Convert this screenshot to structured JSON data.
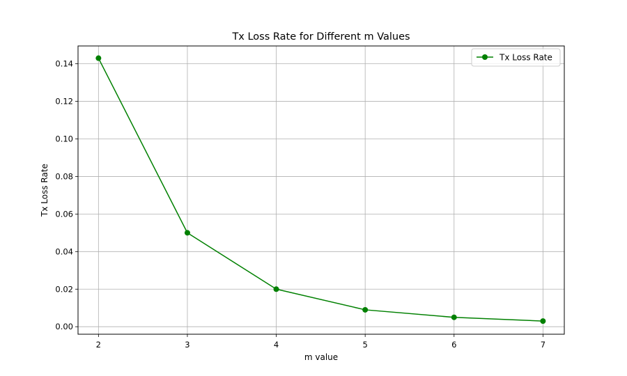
{
  "chart_data": {
    "type": "line",
    "title": "Tx Loss Rate for Different m Values",
    "xlabel": "m value",
    "ylabel": "Tx Loss Rate",
    "x": [
      2,
      3,
      4,
      5,
      6,
      7
    ],
    "series": [
      {
        "name": "Tx Loss Rate",
        "color": "#008000",
        "marker": "circle",
        "values": [
          0.143,
          0.05,
          0.02,
          0.009,
          0.005,
          0.003
        ]
      }
    ],
    "xlim": [
      1.77,
      7.24
    ],
    "ylim": [
      -0.004,
      0.1495
    ],
    "xticks": [
      "2",
      "3",
      "4",
      "5",
      "6",
      "7"
    ],
    "yticks": [
      "0.00",
      "0.02",
      "0.04",
      "0.06",
      "0.08",
      "0.10",
      "0.12",
      "0.14"
    ],
    "grid": true,
    "legend": "top-right"
  }
}
